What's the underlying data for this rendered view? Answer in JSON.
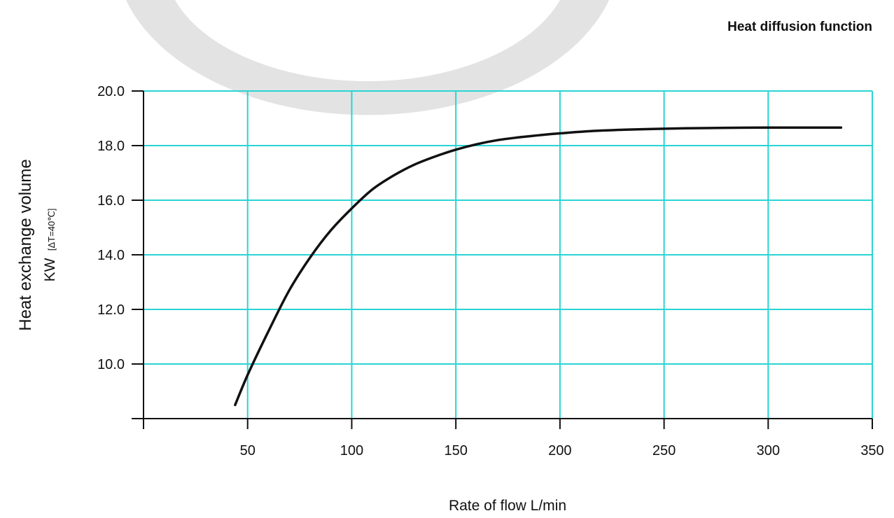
{
  "chart_data": {
    "type": "line",
    "title": "Heat diffusion function",
    "xlabel": "Rate of flow L/min",
    "ylabel": "Heat exchange volume",
    "ylabel_unit": "KW",
    "ylabel_condition": "[ΔT=40℃]",
    "xlim": [
      0,
      350
    ],
    "ylim": [
      8,
      20
    ],
    "x_ticks": [
      50,
      100,
      150,
      200,
      250,
      300,
      350
    ],
    "x_tick_labels": [
      "50",
      "100",
      "150",
      "200",
      "250",
      "300",
      "350"
    ],
    "y_ticks": [
      10,
      12,
      14,
      16,
      18,
      20
    ],
    "y_tick_labels": [
      "10.0",
      "12.0",
      "14.0",
      "16.0",
      "18.0",
      "20.0"
    ],
    "grid": true,
    "series": [
      {
        "x": [
          44,
          50,
          60,
          70,
          80,
          90,
          100,
          110,
          120,
          130,
          140,
          150,
          160,
          170,
          180,
          190,
          200,
          220,
          250,
          280,
          300,
          335
        ],
        "y": [
          8.5,
          9.6,
          11.2,
          12.7,
          13.9,
          14.9,
          15.7,
          16.4,
          16.9,
          17.3,
          17.6,
          17.85,
          18.05,
          18.2,
          18.3,
          18.38,
          18.45,
          18.55,
          18.62,
          18.65,
          18.66,
          18.66
        ]
      }
    ],
    "colors": {
      "grid": "#2ad4d4",
      "line": "#111111",
      "axis": "#111111"
    }
  }
}
